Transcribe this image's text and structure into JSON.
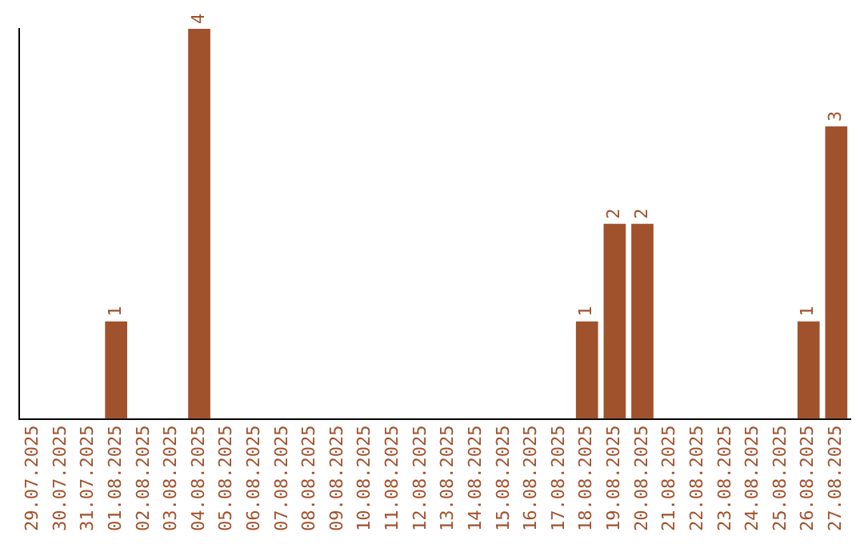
{
  "chart_data": {
    "type": "bar",
    "categories": [
      "29.07.2025",
      "30.07.2025",
      "31.07.2025",
      "01.08.2025",
      "02.08.2025",
      "03.08.2025",
      "04.08.2025",
      "05.08.2025",
      "06.08.2025",
      "07.08.2025",
      "08.08.2025",
      "09.08.2025",
      "10.08.2025",
      "11.08.2025",
      "12.08.2025",
      "13.08.2025",
      "14.08.2025",
      "15.08.2025",
      "16.08.2025",
      "17.08.2025",
      "18.08.2025",
      "19.08.2025",
      "20.08.2025",
      "21.08.2025",
      "22.08.2025",
      "23.08.2025",
      "24.08.2025",
      "25.08.2025",
      "26.08.2025",
      "27.08.2025"
    ],
    "values": [
      0,
      0,
      0,
      1,
      0,
      0,
      4,
      0,
      0,
      0,
      0,
      0,
      0,
      0,
      0,
      0,
      0,
      0,
      0,
      0,
      1,
      2,
      2,
      0,
      0,
      0,
      0,
      0,
      1,
      3
    ],
    "value_labels": [
      null,
      null,
      null,
      "1",
      null,
      null,
      "4",
      null,
      null,
      null,
      null,
      null,
      null,
      null,
      null,
      null,
      null,
      null,
      null,
      null,
      "1",
      "2",
      "2",
      null,
      null,
      null,
      null,
      null,
      "1",
      "3"
    ],
    "color": "#a0522d",
    "grid": false,
    "legend": false,
    "tick_labels": "x"
  }
}
